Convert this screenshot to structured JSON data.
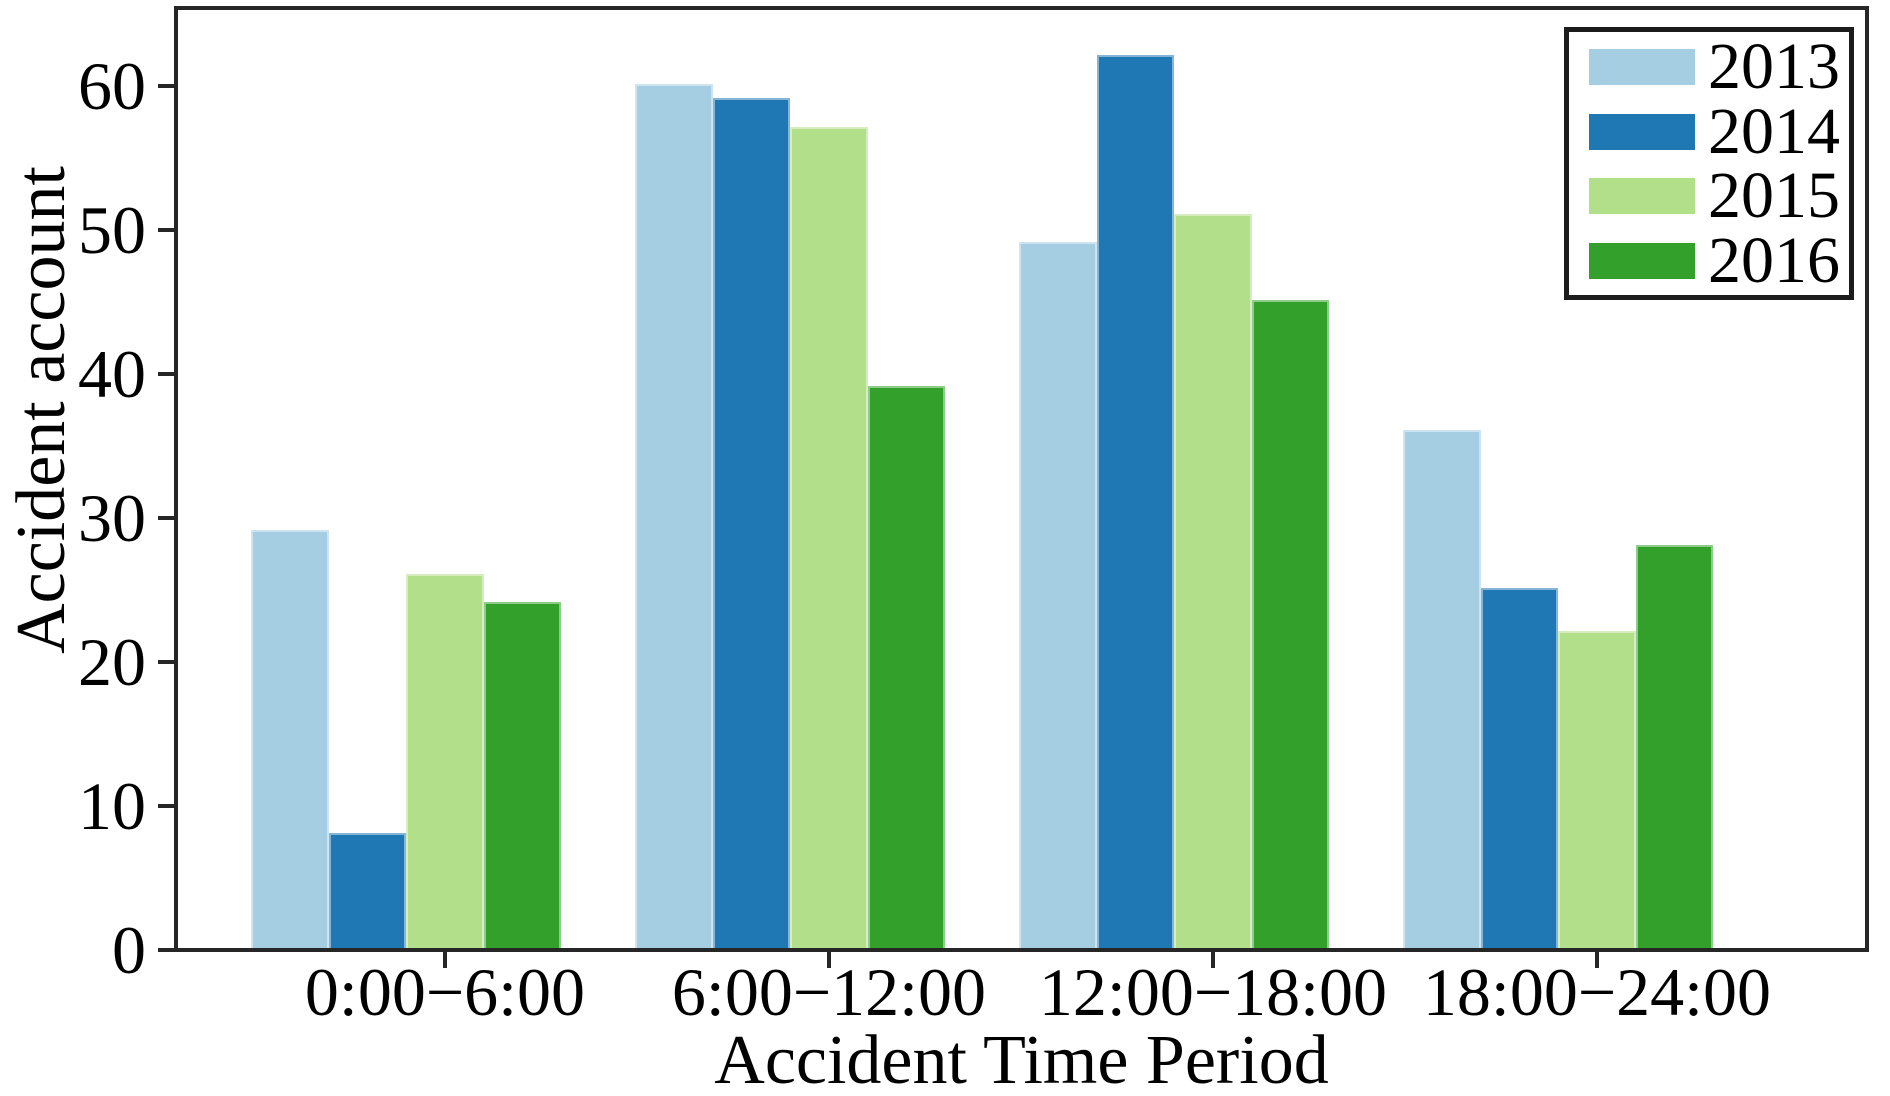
{
  "chart_data": {
    "type": "bar",
    "title": "",
    "xlabel": "Accident Time Period",
    "ylabel": "Accident account",
    "categories": [
      "0:00−6:00",
      "6:00−12:00",
      "12:00−18:00",
      "18:00−24:00"
    ],
    "series": [
      {
        "name": "2013",
        "color": "#a6cee3",
        "values": [
          29,
          60,
          49,
          36
        ]
      },
      {
        "name": "2014",
        "color": "#1f78b4",
        "values": [
          8,
          59,
          62,
          25
        ]
      },
      {
        "name": "2015",
        "color": "#b2df8a",
        "values": [
          26,
          57,
          51,
          22
        ]
      },
      {
        "name": "2016",
        "color": "#33a02c",
        "values": [
          24,
          39,
          45,
          28
        ]
      }
    ],
    "y_ticks": [
      "0",
      "10",
      "20",
      "30",
      "40",
      "50",
      "60"
    ],
    "ylim": [
      0,
      65
    ],
    "grid": false,
    "legend_position": "upper right"
  }
}
